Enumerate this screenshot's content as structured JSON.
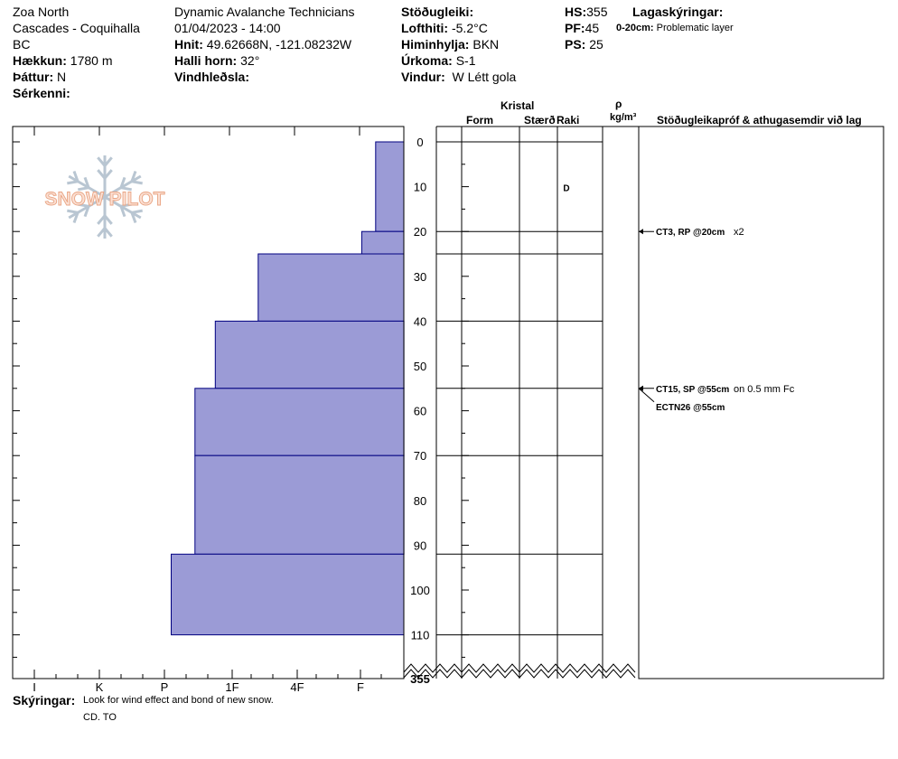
{
  "header": {
    "col1": {
      "line1": "Zoa North",
      "line2": "Cascades - Coquihalla",
      "line3": "BC",
      "elevation_label": "Hækkun:",
      "elevation_value": "1780 m",
      "aspect_label": "Þáttur:",
      "aspect_value": "N",
      "features_label": "Sérkenni:"
    },
    "col2": {
      "org": "Dynamic Avalanche Technicians",
      "datetime": "01/04/2023 - 14:00",
      "coords_label": "Hnit:",
      "coords_value": "49.62668N, -121.08232W",
      "slope_label": "Halli horn:",
      "slope_value": "32°",
      "wind_loading_label": "Vindhleðsla:"
    },
    "col3": {
      "stability_label": "Stöðugleiki:",
      "air_temp_label": "Lofthiti:",
      "air_temp_value": "-5.2°C",
      "sky_label": "Himinhylja:",
      "sky_value": "BKN",
      "precip_label": "Úrkoma:",
      "precip_value": "S-1",
      "wind_label": "Vindur:",
      "wind_value": "W Létt gola"
    },
    "col4": {
      "hs_label": "HS:",
      "hs_value": "355",
      "pf_label": "PF:",
      "pf_value": "45",
      "ps_label": "PS:",
      "ps_value": "25",
      "layer_notes_label": "Lagaskýringar:",
      "layer_note_range": "0-20cm:",
      "layer_note_text": "Problematic layer"
    }
  },
  "logo": {
    "text": "SNOW PILOT"
  },
  "table_headers": {
    "crystal": "Kristal",
    "form": "Form",
    "size": "Stærð",
    "moisture": "Raki",
    "rho": "ρ",
    "density_unit": "kg/m³",
    "tests": "Stöðugleikapróf & athugasemdir við lag"
  },
  "chart_data": {
    "type": "bar",
    "orientation": "horizontal",
    "description_axis": "snow depth (cm)",
    "y_ticks": [
      0,
      10,
      20,
      30,
      40,
      50,
      60,
      70,
      80,
      90,
      100,
      110
    ],
    "y_bottom_label": "355",
    "x_categories": [
      "I",
      "K",
      "P",
      "1F",
      "4F",
      "F"
    ],
    "hardness_scale_note": "F=1, 4F=2, 1F=3, P=4, K=5, I=6; intermediate values allowed",
    "layers": [
      {
        "top": 0,
        "bottom": 20,
        "hardness": 0.65
      },
      {
        "top": 20,
        "bottom": 25,
        "hardness": 0.97
      },
      {
        "top": 25,
        "bottom": 40,
        "hardness": 2.6
      },
      {
        "top": 40,
        "bottom": 55,
        "hardness": 3.25
      },
      {
        "top": 55,
        "bottom": 70,
        "hardness": 3.55
      },
      {
        "top": 70,
        "bottom": 92,
        "hardness": 3.55
      },
      {
        "top": 92,
        "bottom": 110,
        "hardness": 3.9
      }
    ],
    "moisture": [
      {
        "depth": 10,
        "value": "D"
      }
    ],
    "tests": [
      {
        "depth": 20,
        "code": "CT3, RP @20cm",
        "comment": "x2"
      },
      {
        "depth": 55,
        "code": "CT15, SP @55cm",
        "comment": "on 0.5 mm Fc"
      },
      {
        "depth": 55,
        "code": "ECTN26 @55cm",
        "comment": ""
      }
    ],
    "bar_color": "#9b9bd6",
    "bar_stroke": "#000080"
  },
  "footer": {
    "notes_label": "Skýringar:",
    "notes_text": "Look for wind effect and bond of new snow.",
    "observer": "CD. TO"
  }
}
